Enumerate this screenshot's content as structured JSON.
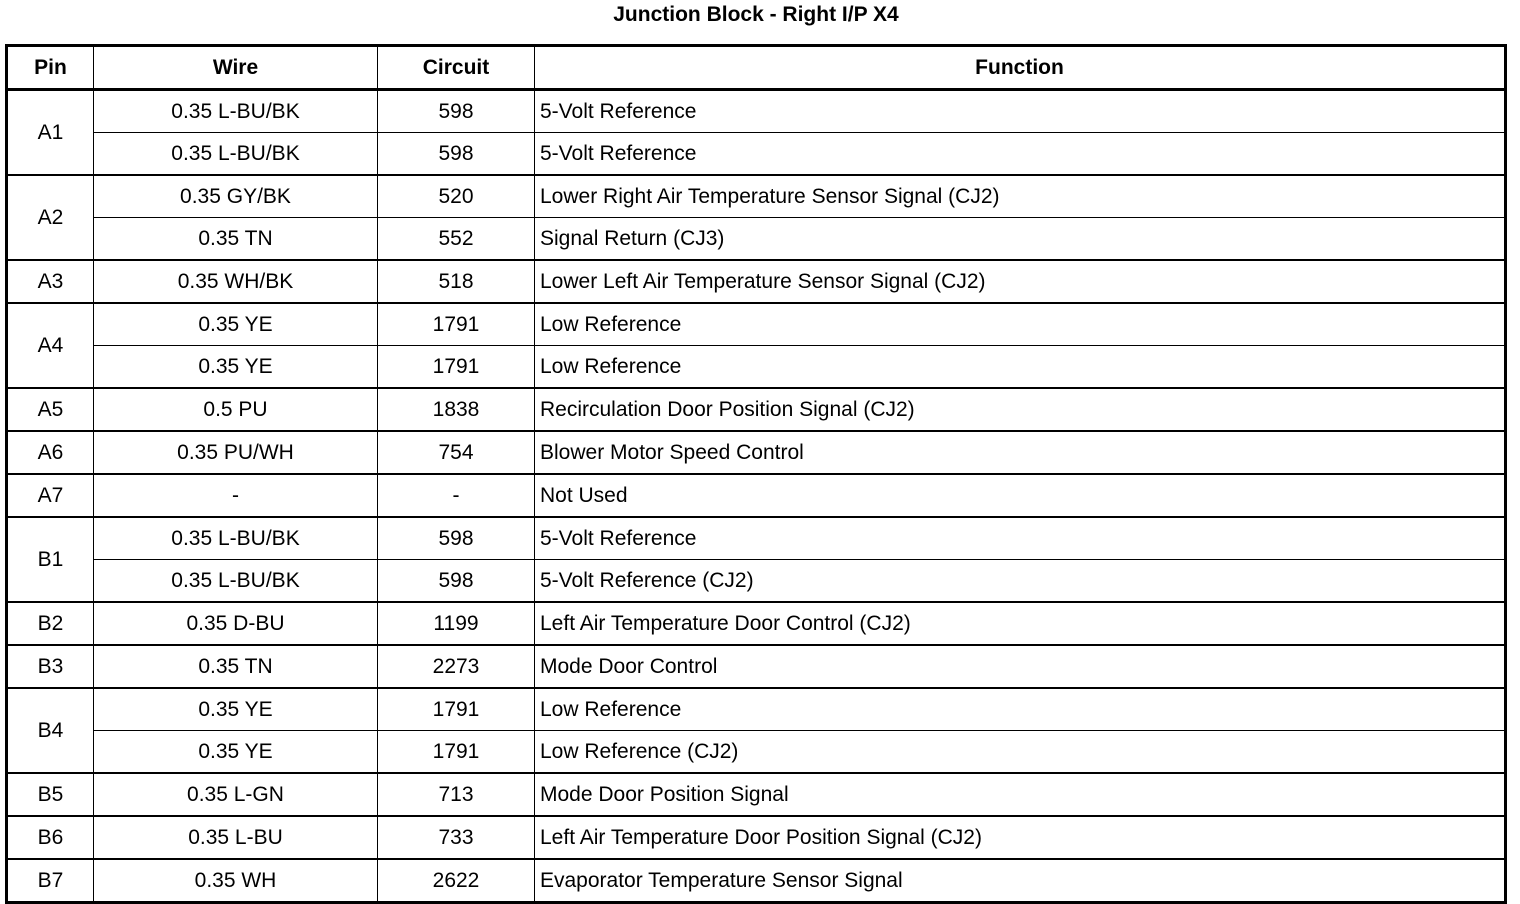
{
  "title": "Junction Block - Right I/P X4",
  "headers": {
    "pin": "Pin",
    "wire": "Wire",
    "circuit": "Circuit",
    "function": "Function"
  },
  "pins": [
    {
      "pin": "A1",
      "rows": [
        {
          "wire": "0.35 L-BU/BK",
          "circuit": "598",
          "function": "5-Volt Reference"
        },
        {
          "wire": "0.35 L-BU/BK",
          "circuit": "598",
          "function": "5-Volt Reference"
        }
      ]
    },
    {
      "pin": "A2",
      "rows": [
        {
          "wire": "0.35 GY/BK",
          "circuit": "520",
          "function": "Lower Right Air Temperature Sensor Signal (CJ2)"
        },
        {
          "wire": "0.35 TN",
          "circuit": "552",
          "function": "Signal Return (CJ3)"
        }
      ]
    },
    {
      "pin": "A3",
      "rows": [
        {
          "wire": "0.35 WH/BK",
          "circuit": "518",
          "function": "Lower Left Air Temperature Sensor Signal (CJ2)"
        }
      ]
    },
    {
      "pin": "A4",
      "rows": [
        {
          "wire": "0.35 YE",
          "circuit": "1791",
          "function": "Low Reference"
        },
        {
          "wire": "0.35 YE",
          "circuit": "1791",
          "function": "Low Reference"
        }
      ]
    },
    {
      "pin": "A5",
      "rows": [
        {
          "wire": "0.5 PU",
          "circuit": "1838",
          "function": "Recirculation Door Position Signal (CJ2)"
        }
      ]
    },
    {
      "pin": "A6",
      "rows": [
        {
          "wire": "0.35 PU/WH",
          "circuit": "754",
          "function": "Blower Motor Speed Control"
        }
      ]
    },
    {
      "pin": "A7",
      "rows": [
        {
          "wire": "-",
          "circuit": "-",
          "function": "Not Used"
        }
      ]
    },
    {
      "pin": "B1",
      "rows": [
        {
          "wire": "0.35 L-BU/BK",
          "circuit": "598",
          "function": "5-Volt Reference"
        },
        {
          "wire": "0.35 L-BU/BK",
          "circuit": "598",
          "function": "5-Volt Reference (CJ2)"
        }
      ]
    },
    {
      "pin": "B2",
      "rows": [
        {
          "wire": "0.35 D-BU",
          "circuit": "1199",
          "function": "Left Air Temperature Door Control (CJ2)"
        }
      ]
    },
    {
      "pin": "B3",
      "rows": [
        {
          "wire": "0.35 TN",
          "circuit": "2273",
          "function": "Mode Door Control"
        }
      ]
    },
    {
      "pin": "B4",
      "rows": [
        {
          "wire": "0.35 YE",
          "circuit": "1791",
          "function": "Low Reference"
        },
        {
          "wire": "0.35 YE",
          "circuit": "1791",
          "function": "Low Reference (CJ2)"
        }
      ]
    },
    {
      "pin": "B5",
      "rows": [
        {
          "wire": "0.35 L-GN",
          "circuit": "713",
          "function": "Mode Door Position Signal"
        }
      ]
    },
    {
      "pin": "B6",
      "rows": [
        {
          "wire": "0.35 L-BU",
          "circuit": "733",
          "function": "Left Air Temperature Door Position Signal (CJ2)"
        }
      ]
    },
    {
      "pin": "B7",
      "rows": [
        {
          "wire": "0.35 WH",
          "circuit": "2622",
          "function": "Evaporator Temperature Sensor Signal"
        }
      ]
    }
  ]
}
